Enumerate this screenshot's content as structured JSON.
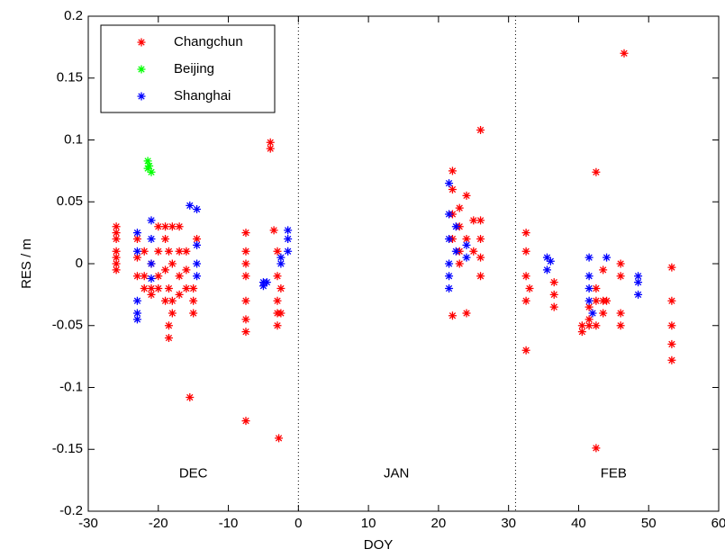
{
  "chart_data": {
    "type": "scatter",
    "xlabel": "DOY",
    "ylabel": "RES / m",
    "xlim": [
      -30,
      60
    ],
    "ylim": [
      -0.2,
      0.2
    ],
    "xticks": [
      -30,
      -20,
      -10,
      0,
      10,
      20,
      30,
      40,
      50,
      60
    ],
    "yticks": [
      -0.2,
      -0.15,
      -0.1,
      -0.05,
      0,
      0.05,
      0.1,
      0.15,
      0.2
    ],
    "grid": false,
    "legend_position": "upper left",
    "dividers": [
      0,
      31
    ],
    "annotations": [
      {
        "text": "DEC",
        "x": -15,
        "y": -0.17
      },
      {
        "text": "JAN",
        "x": 14,
        "y": -0.17
      },
      {
        "text": "FEB",
        "x": 45,
        "y": -0.17
      }
    ],
    "series": [
      {
        "name": "Changchun",
        "color": "#ff0000",
        "x": [
          -26,
          -26,
          -26,
          -26,
          -26,
          -26,
          -26,
          -23,
          -23,
          -23,
          -22,
          -22,
          -22,
          -21,
          -21,
          -21,
          -20,
          -20,
          -20,
          -20,
          -19,
          -19,
          -19,
          -19,
          -18.5,
          -18.5,
          -18.5,
          -18.5,
          -18,
          -18,
          -18,
          -18,
          -17,
          -17,
          -17,
          -17,
          -16,
          -16,
          -16,
          -15.5,
          -15,
          -15,
          -15,
          -14.5,
          -7.5,
          -7.5,
          -7.5,
          -7.5,
          -7.5,
          -7.5,
          -7.5,
          -7.5,
          -4,
          -4,
          -3.5,
          -3,
          -3,
          -3,
          -3,
          -3,
          -2.8,
          -2.5,
          -2.5,
          22,
          22,
          22,
          22,
          22,
          23,
          23,
          23,
          23,
          24,
          24,
          24,
          25,
          25,
          26,
          26,
          26,
          26,
          26,
          32.5,
          32.5,
          32.5,
          32.5,
          32.5,
          33,
          36.5,
          36.5,
          36.5,
          40.5,
          40.5,
          41.5,
          41.5,
          41.5,
          42.5,
          42.5,
          42.5,
          42.5,
          42.5,
          43.5,
          43.5,
          43.5,
          44,
          46,
          46,
          46,
          46,
          46.5,
          53.3,
          53.3,
          53.3,
          53.3,
          53.3
        ],
        "values": [
          0.03,
          0.02,
          0.01,
          0,
          0.005,
          -0.005,
          0.025,
          0.02,
          0.005,
          -0.01,
          -0.01,
          -0.02,
          0.01,
          -0.02,
          -0.025,
          0,
          0.03,
          0.01,
          -0.01,
          -0.02,
          0.03,
          0.02,
          -0.005,
          -0.03,
          -0.05,
          -0.06,
          -0.02,
          0.01,
          0.03,
          0,
          -0.03,
          -0.04,
          0.03,
          0.01,
          -0.01,
          -0.025,
          0.01,
          -0.005,
          -0.02,
          -0.108,
          -0.03,
          -0.04,
          -0.02,
          0.02,
          0.025,
          0.01,
          -0.01,
          -0.03,
          -0.045,
          -0.055,
          0,
          -0.127,
          0.098,
          0.093,
          0.027,
          -0.01,
          -0.03,
          -0.05,
          0.01,
          -0.04,
          -0.141,
          -0.02,
          -0.04,
          0.075,
          0.06,
          0.04,
          0.02,
          -0.042,
          0.045,
          0.03,
          0.01,
          0,
          0.055,
          0.02,
          -0.04,
          0.035,
          0.01,
          0.108,
          0.035,
          0.02,
          0.005,
          -0.01,
          0.025,
          0.01,
          -0.01,
          -0.03,
          -0.07,
          -0.02,
          -0.015,
          -0.025,
          -0.035,
          -0.05,
          -0.055,
          -0.045,
          -0.05,
          -0.035,
          0.074,
          -0.149,
          -0.05,
          -0.02,
          -0.03,
          -0.03,
          -0.04,
          -0.005,
          -0.03,
          0,
          -0.01,
          -0.04,
          -0.05,
          0.17,
          -0.003,
          -0.03,
          -0.05,
          -0.065,
          -0.078
        ]
      },
      {
        "name": "Beijing",
        "color": "#00ff00",
        "x": [
          -21.5,
          -21.5,
          -21,
          -21.3
        ],
        "values": [
          0.083,
          0.077,
          0.074,
          0.079
        ]
      },
      {
        "name": "Shanghai",
        "color": "#0000ff",
        "x": [
          -23,
          -23,
          -23,
          -23,
          -23,
          -21,
          -21,
          -21,
          -21,
          -15.5,
          -14.5,
          -14.5,
          -14.5,
          -14.5,
          -5,
          -5,
          -4.5,
          -2.5,
          -2.5,
          -1.5,
          -1.5,
          -1.5,
          21.5,
          21.5,
          21.5,
          21.5,
          21.5,
          21.5,
          22.5,
          22.5,
          24,
          24,
          35.5,
          35.5,
          36,
          41.5,
          41.5,
          41.5,
          41.5,
          42,
          44,
          48.5,
          48.5,
          48.5
        ],
        "values": [
          0.025,
          -0.03,
          -0.045,
          -0.04,
          0.01,
          0.035,
          0.02,
          0,
          -0.012,
          0.047,
          0.044,
          0.015,
          0,
          -0.01,
          -0.015,
          -0.018,
          -0.015,
          0.005,
          0,
          0.027,
          0.02,
          0.01,
          0.065,
          0.04,
          0.02,
          0,
          -0.01,
          -0.02,
          0.03,
          0.01,
          0.015,
          0.005,
          0.005,
          -0.005,
          0.002,
          0.005,
          -0.01,
          -0.02,
          -0.03,
          -0.04,
          0.005,
          -0.01,
          -0.015,
          -0.025
        ]
      }
    ]
  }
}
